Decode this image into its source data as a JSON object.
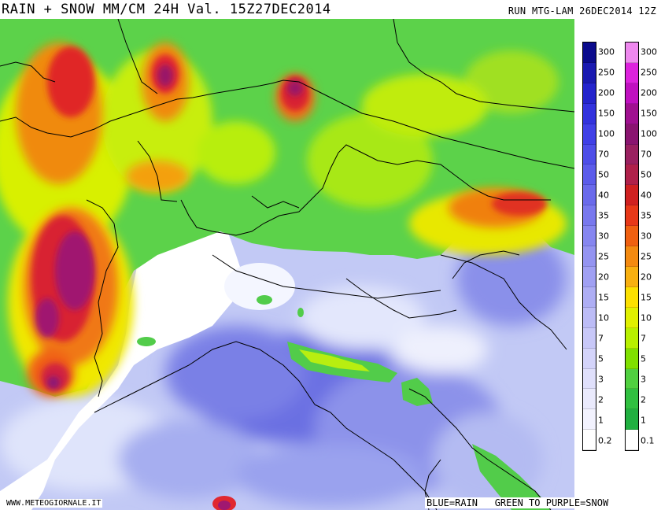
{
  "header": {
    "title": "RAIN + SNOW MM/CM 24H Val. 15Z27DEC2014",
    "run": "RUN MTG-LAM 26DEC2014 12Z"
  },
  "legend_rain": {
    "labels": [
      "300",
      "250",
      "200",
      "150",
      "100",
      "70",
      "50",
      "40",
      "35",
      "30",
      "25",
      "20",
      "15",
      "10",
      "7",
      "5",
      "3",
      "2",
      "1",
      "0.2"
    ],
    "colors": [
      "#0b0b8c",
      "#1a1ab0",
      "#2424cc",
      "#3232dd",
      "#4040e6",
      "#4e4ee8",
      "#5c5cea",
      "#6a6aeb",
      "#7878ee",
      "#8686f0",
      "#9494f1",
      "#a0a0f3",
      "#aeaef4",
      "#bcbcf6",
      "#c8c8f8",
      "#d4d4fa",
      "#e0e0fb",
      "#eaeafc",
      "#f2f2fe",
      "#ffffff"
    ]
  },
  "legend_snow": {
    "labels": [
      "300",
      "250",
      "200",
      "150",
      "100",
      "70",
      "50",
      "40",
      "35",
      "30",
      "25",
      "20",
      "15",
      "10",
      "7",
      "5",
      "3",
      "2",
      "1",
      "0.1"
    ],
    "colors": [
      "#ee88ee",
      "#dd22dd",
      "#c010c0",
      "#a01090",
      "#8a1470",
      "#9a2060",
      "#b0204a",
      "#d02020",
      "#e83818",
      "#f06010",
      "#f48a10",
      "#f8b010",
      "#fce000",
      "#e0f000",
      "#b8f000",
      "#80e000",
      "#50d040",
      "#30c040",
      "#20b040",
      "#ffffff"
    ]
  },
  "footer": {
    "source": "WWW.METEOGIORNALE.IT",
    "key": "BLUE=RAIN   GREEN TO PURPLE=SNOW"
  },
  "colors": {
    "rain_light": "#dde3fb",
    "rain_mid": "#a9b2ef",
    "rain_heavy": "#5a60dd",
    "snow_green": "#42c84a",
    "snow_yellow": "#f2f200",
    "snow_orange": "#f28a10",
    "snow_red": "#e02020",
    "snow_purple": "#a01070"
  }
}
